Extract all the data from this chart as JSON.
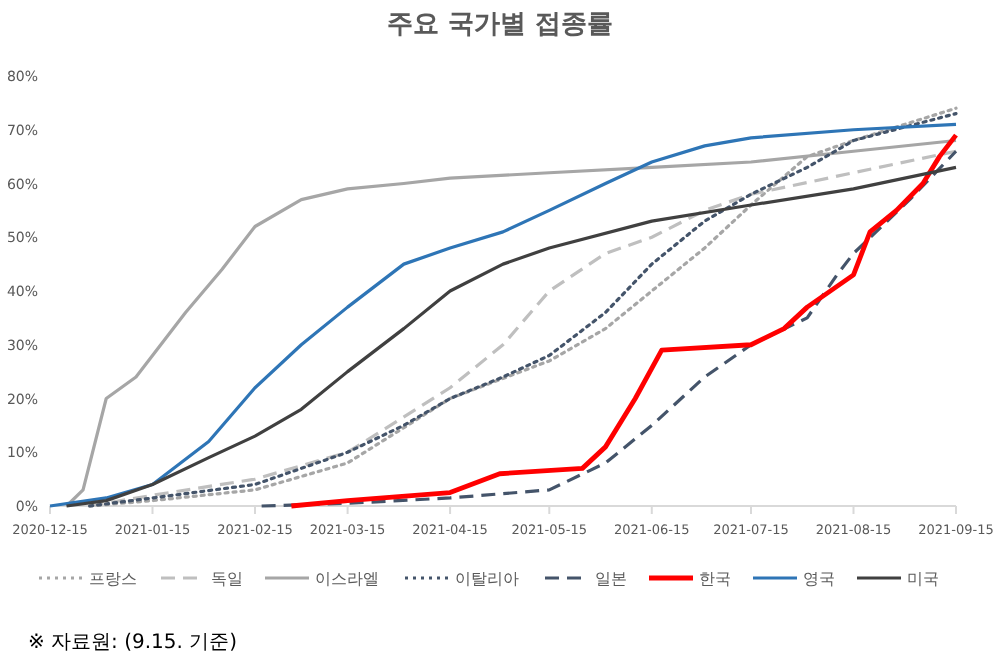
{
  "chart_data": {
    "type": "line",
    "title": "주요 국가별 접종률",
    "xlim": [
      "2020-12-15",
      "2021-09-15"
    ],
    "xticks": [
      "2020-12-15",
      "2021-01-15",
      "2021-02-15",
      "2021-03-15",
      "2021-04-15",
      "2021-05-15",
      "2021-06-15",
      "2021-07-15",
      "2021-08-15",
      "2021-09-15"
    ],
    "ylim": [
      0,
      80
    ],
    "yticks": [
      {
        "value": 0,
        "label": "0%"
      },
      {
        "value": 10,
        "label": "10%"
      },
      {
        "value": 20,
        "label": "20%"
      },
      {
        "value": 30,
        "label": "30%"
      },
      {
        "value": 40,
        "label": "40%"
      },
      {
        "value": 50,
        "label": "50%"
      },
      {
        "value": 60,
        "label": "60%"
      },
      {
        "value": 70,
        "label": "70%"
      },
      {
        "value": 80,
        "label": "80%"
      }
    ],
    "grid": false,
    "legend": "bottom",
    "marker": "none",
    "series": [
      {
        "name": "프랑스",
        "color": "#a6a6a6",
        "line_style": "dotted",
        "x": [
          "2020-12-27",
          "2021-01-15",
          "2021-02-15",
          "2021-03-15",
          "2021-04-15",
          "2021-05-15",
          "2021-06-01",
          "2021-06-15",
          "2021-07-01",
          "2021-07-15",
          "2021-08-01",
          "2021-08-15",
          "2021-09-15"
        ],
        "values": [
          0,
          1,
          3,
          8,
          20,
          27,
          33,
          40,
          48,
          56,
          65,
          68,
          74
        ]
      },
      {
        "name": "독일",
        "color": "#bfbfbf",
        "line_style": "dashed",
        "x": [
          "2020-12-27",
          "2021-01-15",
          "2021-02-15",
          "2021-03-15",
          "2021-04-15",
          "2021-05-01",
          "2021-05-15",
          "2021-06-01",
          "2021-06-15",
          "2021-07-01",
          "2021-07-15",
          "2021-08-15",
          "2021-09-15"
        ],
        "values": [
          0,
          2,
          5,
          10,
          22,
          30,
          40,
          47,
          50,
          55,
          58,
          62,
          66
        ]
      },
      {
        "name": "이스라엘",
        "color": "#a6a6a6",
        "line_style": "solid",
        "x": [
          "2020-12-20",
          "2020-12-25",
          "2021-01-01",
          "2021-01-10",
          "2021-01-15",
          "2021-01-25",
          "2021-02-05",
          "2021-02-15",
          "2021-03-01",
          "2021-03-15",
          "2021-04-01",
          "2021-04-15",
          "2021-05-15",
          "2021-06-15",
          "2021-07-15",
          "2021-08-15",
          "2021-09-15"
        ],
        "values": [
          0,
          3,
          20,
          24,
          28,
          36,
          44,
          52,
          57,
          59,
          60,
          61,
          62,
          63,
          64,
          66,
          68
        ]
      },
      {
        "name": "이탈리아",
        "color": "#44546a",
        "line_style": "dotted",
        "x": [
          "2020-12-27",
          "2021-01-15",
          "2021-02-15",
          "2021-03-15",
          "2021-04-01",
          "2021-04-15",
          "2021-05-01",
          "2021-05-15",
          "2021-06-01",
          "2021-06-15",
          "2021-07-01",
          "2021-07-15",
          "2021-08-01",
          "2021-08-15",
          "2021-09-15"
        ],
        "values": [
          0,
          1.5,
          4,
          10,
          15,
          20,
          24,
          28,
          36,
          45,
          53,
          58,
          63,
          68,
          73
        ]
      },
      {
        "name": "일본",
        "color": "#44546a",
        "line_style": "dashed",
        "x": [
          "2021-02-17",
          "2021-03-15",
          "2021-04-15",
          "2021-05-15",
          "2021-06-01",
          "2021-06-15",
          "2021-07-01",
          "2021-07-15",
          "2021-08-01",
          "2021-08-10",
          "2021-08-15",
          "2021-09-01",
          "2021-09-15"
        ],
        "values": [
          0,
          0.5,
          1.5,
          3,
          8,
          15,
          24,
          30,
          35,
          43,
          47,
          57,
          66
        ]
      },
      {
        "name": "한국",
        "color": "#ff0000",
        "line_style": "solid",
        "x": [
          "2021-02-26",
          "2021-03-15",
          "2021-04-15",
          "2021-04-30",
          "2021-05-25",
          "2021-06-01",
          "2021-06-10",
          "2021-06-18",
          "2021-07-15",
          "2021-07-25",
          "2021-08-01",
          "2021-08-15",
          "2021-08-20",
          "2021-08-28",
          "2021-09-05",
          "2021-09-10",
          "2021-09-15"
        ],
        "values": [
          0,
          1,
          2.5,
          6,
          7,
          11,
          20,
          29,
          30,
          33,
          37,
          43,
          51,
          55,
          60,
          65,
          69
        ]
      },
      {
        "name": "영국",
        "color": "#2e75b6",
        "line_style": "solid",
        "x": [
          "2020-12-15",
          "2021-01-01",
          "2021-01-15",
          "2021-02-01",
          "2021-02-15",
          "2021-03-01",
          "2021-03-15",
          "2021-04-01",
          "2021-04-15",
          "2021-05-01",
          "2021-05-15",
          "2021-06-01",
          "2021-06-15",
          "2021-07-01",
          "2021-07-15",
          "2021-08-15",
          "2021-09-15"
        ],
        "values": [
          0,
          1.5,
          4,
          12,
          22,
          30,
          37,
          45,
          48,
          51,
          55,
          60,
          64,
          67,
          68.5,
          70,
          71
        ]
      },
      {
        "name": "미국",
        "color": "#404040",
        "line_style": "solid",
        "x": [
          "2020-12-20",
          "2021-01-01",
          "2021-01-15",
          "2021-02-01",
          "2021-02-15",
          "2021-03-01",
          "2021-03-15",
          "2021-04-01",
          "2021-04-15",
          "2021-05-01",
          "2021-05-15",
          "2021-06-15",
          "2021-07-15",
          "2021-08-15",
          "2021-09-15"
        ],
        "values": [
          0,
          1,
          4,
          9,
          13,
          18,
          25,
          33,
          40,
          45,
          48,
          53,
          56,
          59,
          63
        ]
      }
    ],
    "annotations": [
      "※ 자료원: (9.15. 기준)"
    ]
  }
}
